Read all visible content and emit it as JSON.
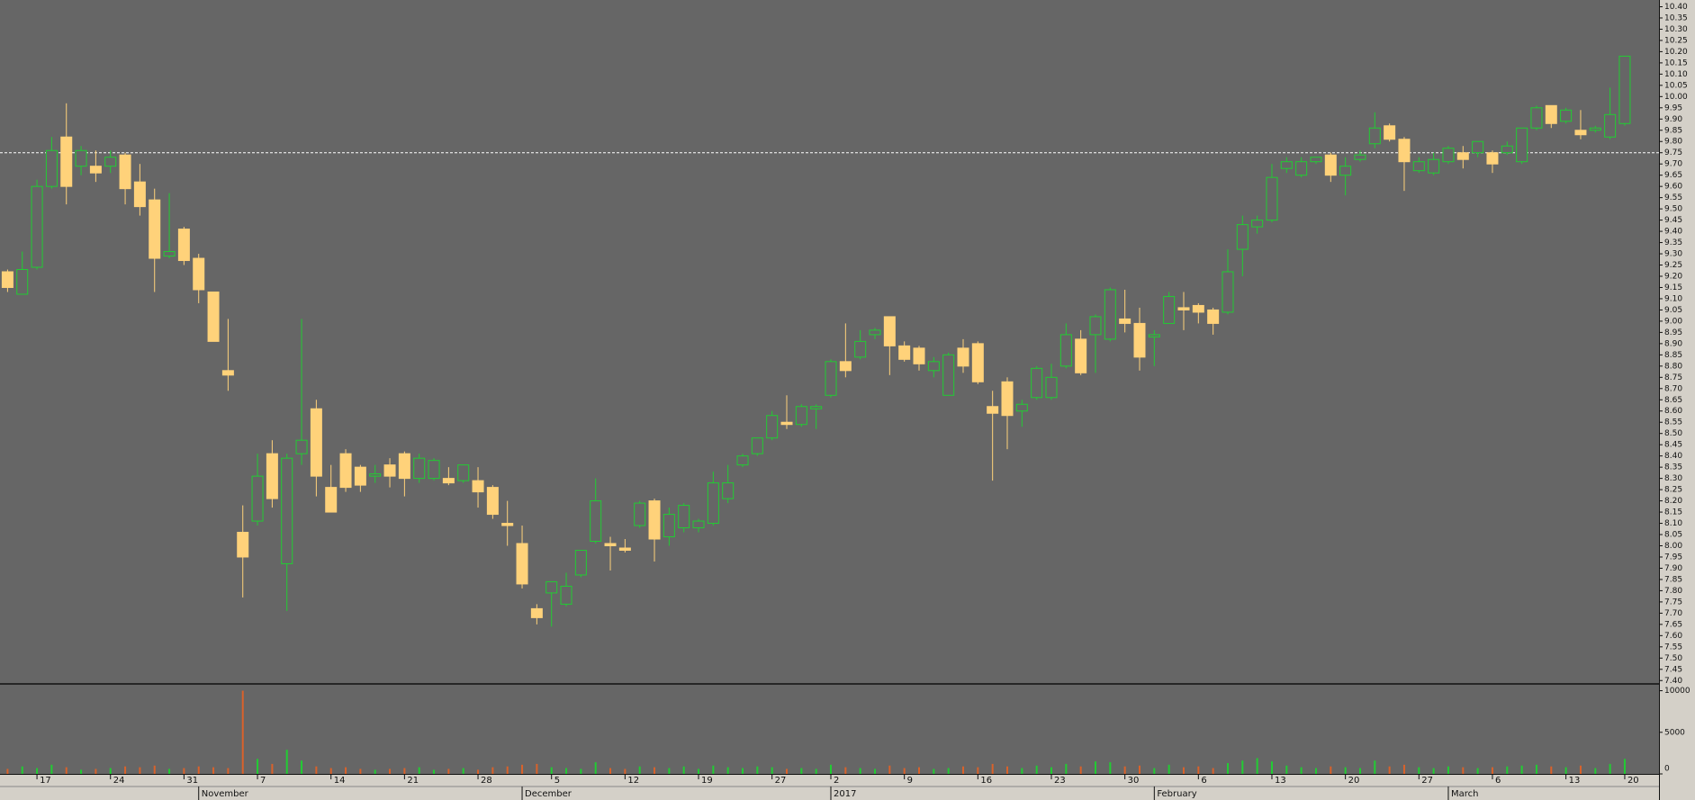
{
  "chart_data": {
    "type": "candlestick",
    "categories": [
      null,
      null,
      "17",
      null,
      null,
      null,
      null,
      "24",
      null,
      null,
      null,
      null,
      "31",
      null,
      null,
      null,
      null,
      "7",
      null,
      null,
      null,
      null,
      "14",
      null,
      null,
      null,
      null,
      "21",
      null,
      null,
      null,
      null,
      "28",
      null,
      null,
      null,
      null,
      "5",
      null,
      null,
      null,
      null,
      "12",
      null,
      null,
      null,
      null,
      "19",
      null,
      null,
      null,
      null,
      "27",
      null,
      null,
      null,
      "2",
      null,
      null,
      null,
      null,
      "9",
      null,
      null,
      null,
      null,
      "16",
      null,
      null,
      null,
      null,
      "23",
      null,
      null,
      null,
      null,
      "30",
      null,
      null,
      null,
      null,
      "6",
      null,
      null,
      null,
      null,
      "13",
      null,
      null,
      null,
      null,
      "20",
      null,
      null,
      null,
      null,
      "27",
      null,
      null,
      null,
      null,
      "6",
      null,
      null,
      null,
      null,
      "13",
      null,
      null,
      null,
      "20"
    ],
    "months": [
      null,
      null,
      null,
      null,
      null,
      null,
      null,
      null,
      null,
      null,
      null,
      null,
      null,
      "November",
      null,
      null,
      null,
      null,
      null,
      null,
      null,
      null,
      null,
      null,
      null,
      null,
      null,
      null,
      null,
      null,
      null,
      null,
      null,
      null,
      null,
      "December",
      null,
      null,
      null,
      null,
      null,
      null,
      null,
      null,
      null,
      null,
      null,
      null,
      null,
      null,
      null,
      null,
      null,
      null,
      null,
      null,
      "2017",
      null,
      null,
      null,
      null,
      null,
      null,
      null,
      null,
      null,
      null,
      null,
      null,
      null,
      null,
      null,
      null,
      null,
      null,
      null,
      null,
      null,
      "February",
      null,
      null,
      null,
      null,
      null,
      null,
      null,
      null,
      null,
      null,
      null,
      null,
      null,
      null,
      null,
      null,
      null,
      null,
      null,
      "March",
      null,
      null,
      null,
      null,
      null,
      null,
      null,
      null,
      null,
      null,
      null,
      null
    ],
    "open": [
      9.22,
      9.12,
      9.24,
      9.6,
      9.82,
      9.69,
      9.69,
      9.69,
      9.74,
      9.62,
      9.54,
      9.29,
      9.41,
      9.28,
      9.13,
      8.78,
      8.06,
      8.11,
      8.41,
      7.92,
      8.41,
      8.61,
      8.26,
      8.41,
      8.35,
      8.31,
      8.36,
      8.41,
      8.3,
      8.3,
      8.3,
      8.29,
      8.29,
      8.26,
      8.1,
      8.01,
      7.72,
      7.79,
      7.74,
      7.87,
      8.02,
      8.01,
      7.99,
      8.09,
      8.2,
      8.04,
      8.08,
      8.08,
      8.1,
      8.21,
      8.36,
      8.41,
      8.48,
      8.55,
      8.54,
      8.61,
      8.67,
      8.82,
      8.84,
      8.94,
      9.02,
      8.89,
      8.88,
      8.78,
      8.67,
      8.88,
      8.9,
      8.62,
      8.73,
      8.6,
      8.66,
      8.66,
      8.8,
      8.92,
      8.94,
      8.92,
      9.01,
      8.99,
      8.93,
      8.99,
      9.06,
      9.07,
      9.05,
      9.04,
      9.32,
      9.42,
      9.45,
      9.68,
      9.65,
      9.71,
      9.74,
      9.65,
      9.72,
      9.79,
      9.87,
      9.81,
      9.67,
      9.66,
      9.71,
      9.75,
      9.75,
      9.75,
      9.75,
      9.71,
      9.86,
      9.96,
      9.89,
      9.85,
      9.85,
      9.82,
      9.88
    ],
    "high": [
      9.23,
      9.31,
      9.63,
      9.82,
      9.97,
      9.78,
      9.76,
      9.76,
      9.75,
      9.7,
      9.59,
      9.57,
      9.42,
      9.3,
      9.13,
      9.01,
      8.18,
      8.41,
      8.47,
      8.41,
      9.01,
      8.65,
      8.36,
      8.43,
      8.36,
      8.36,
      8.39,
      8.42,
      8.41,
      8.39,
      8.35,
      8.36,
      8.35,
      8.27,
      8.2,
      8.09,
      7.74,
      7.84,
      7.88,
      7.98,
      8.3,
      8.04,
      8.03,
      8.2,
      8.21,
      8.17,
      8.19,
      8.12,
      8.33,
      8.36,
      8.41,
      8.48,
      8.6,
      8.67,
      8.63,
      8.63,
      8.83,
      8.99,
      8.96,
      8.97,
      9.02,
      8.91,
      8.89,
      8.84,
      8.86,
      8.92,
      8.91,
      8.69,
      8.75,
      8.65,
      8.8,
      8.81,
      8.99,
      8.96,
      9.03,
      9.15,
      9.14,
      9.06,
      8.96,
      9.13,
      9.13,
      9.08,
      9.06,
      9.32,
      9.47,
      9.47,
      9.7,
      9.73,
      9.73,
      9.73,
      9.75,
      9.73,
      9.76,
      9.93,
      9.88,
      9.82,
      9.73,
      9.75,
      9.78,
      9.78,
      9.8,
      9.76,
      9.8,
      9.86,
      9.96,
      9.96,
      9.95,
      9.94,
      9.87,
      10.04,
      10.18
    ],
    "low": [
      9.13,
      9.12,
      9.23,
      9.59,
      9.52,
      9.65,
      9.62,
      9.66,
      9.52,
      9.47,
      9.13,
      9.28,
      9.25,
      9.08,
      8.91,
      8.69,
      7.77,
      8.09,
      8.17,
      7.71,
      8.36,
      8.22,
      8.15,
      8.24,
      8.24,
      8.28,
      8.26,
      8.22,
      8.28,
      8.29,
      8.27,
      8.28,
      8.17,
      8.12,
      8.0,
      7.81,
      7.65,
      7.64,
      7.73,
      7.86,
      8.01,
      7.89,
      7.97,
      8.08,
      7.93,
      8.0,
      8.06,
      8.06,
      8.09,
      8.19,
      8.35,
      8.4,
      8.47,
      8.52,
      8.53,
      8.52,
      8.66,
      8.75,
      8.83,
      8.92,
      8.76,
      8.82,
      8.78,
      8.75,
      8.67,
      8.77,
      8.72,
      8.29,
      8.43,
      8.53,
      8.65,
      8.65,
      8.79,
      8.76,
      8.77,
      8.91,
      8.95,
      8.78,
      8.8,
      8.99,
      8.96,
      8.99,
      8.94,
      9.03,
      9.2,
      9.39,
      9.44,
      9.66,
      9.64,
      9.7,
      9.62,
      9.56,
      9.71,
      9.77,
      9.8,
      9.58,
      9.66,
      9.65,
      9.7,
      9.68,
      9.73,
      9.66,
      9.74,
      9.7,
      9.85,
      9.86,
      9.88,
      9.81,
      9.84,
      9.81,
      9.87
    ],
    "close": [
      9.15,
      9.23,
      9.6,
      9.76,
      9.6,
      9.76,
      9.66,
      9.73,
      9.59,
      9.51,
      9.28,
      9.31,
      9.27,
      9.14,
      8.91,
      8.76,
      7.95,
      8.31,
      8.21,
      8.39,
      8.47,
      8.31,
      8.15,
      8.26,
      8.27,
      8.32,
      8.31,
      8.3,
      8.39,
      8.38,
      8.28,
      8.36,
      8.24,
      8.14,
      8.09,
      7.83,
      7.68,
      7.84,
      7.82,
      7.98,
      8.2,
      8.0,
      7.98,
      8.19,
      8.03,
      8.14,
      8.18,
      8.11,
      8.28,
      8.28,
      8.4,
      8.48,
      8.58,
      8.54,
      8.62,
      8.62,
      8.82,
      8.78,
      8.91,
      8.96,
      8.89,
      8.83,
      8.81,
      8.82,
      8.85,
      8.8,
      8.73,
      8.59,
      8.58,
      8.63,
      8.79,
      8.75,
      8.94,
      8.77,
      9.02,
      9.14,
      8.99,
      8.84,
      8.94,
      9.11,
      9.05,
      9.04,
      8.99,
      9.22,
      9.43,
      9.45,
      9.64,
      9.71,
      9.71,
      9.73,
      9.65,
      9.69,
      9.74,
      9.86,
      9.81,
      9.71,
      9.71,
      9.72,
      9.77,
      9.72,
      9.8,
      9.7,
      9.78,
      9.86,
      9.95,
      9.88,
      9.94,
      9.83,
      9.86,
      9.92,
      10.18
    ],
    "volume": [
      600,
      900,
      700,
      1100,
      800,
      500,
      600,
      700,
      900,
      800,
      1000,
      600,
      700,
      900,
      800,
      700,
      10000,
      1800,
      1200,
      2900,
      1600,
      900,
      700,
      800,
      600,
      500,
      600,
      700,
      800,
      500,
      600,
      700,
      500,
      800,
      900,
      1100,
      1200,
      800,
      700,
      600,
      1400,
      700,
      600,
      900,
      800,
      700,
      900,
      600,
      1000,
      800,
      700,
      900,
      800,
      600,
      700,
      600,
      1100,
      800,
      700,
      600,
      1000,
      700,
      800,
      600,
      700,
      900,
      800,
      1200,
      900,
      700,
      1000,
      800,
      1200,
      900,
      1500,
      1400,
      900,
      1000,
      700,
      1100,
      800,
      900,
      700,
      1300,
      1600,
      1900,
      1500,
      1000,
      800,
      700,
      900,
      800,
      700,
      1600,
      900,
      1100,
      800,
      700,
      900,
      800,
      700,
      800,
      900,
      1000,
      1100,
      900,
      800,
      1000,
      700,
      1200,
      1800
    ],
    "ylim": [
      7.385,
      10.43
    ],
    "yticks": [
      {
        "value": 7.4,
        "label": "7.40"
      },
      7.45,
      {
        "value": 7.5,
        "label": "7.50"
      },
      7.55,
      {
        "value": 7.6,
        "label": "7.60"
      },
      7.65,
      {
        "value": 7.7,
        "label": "7.70"
      },
      7.75,
      {
        "value": 7.8,
        "label": "7.80"
      },
      7.85,
      {
        "value": 7.9,
        "label": "7.90"
      },
      7.95,
      {
        "value": 8,
        "label": "8.00"
      },
      8.05,
      {
        "value": 8.1,
        "label": "8.10"
      },
      8.15,
      {
        "value": 8.2,
        "label": "8.20"
      },
      8.25,
      {
        "value": 8.3,
        "label": "8.30"
      },
      8.35,
      {
        "value": 8.4,
        "label": "8.40"
      },
      8.45,
      {
        "value": 8.5,
        "label": "8.50"
      },
      8.55,
      {
        "value": 8.6,
        "label": "8.60"
      },
      8.65,
      {
        "value": 8.7,
        "label": "8.70"
      },
      8.75,
      {
        "value": 8.8,
        "label": "8.80"
      },
      8.85,
      {
        "value": 8.9,
        "label": "8.90"
      },
      8.95,
      {
        "value": 9,
        "label": "9.00"
      },
      9.05,
      {
        "value": 9.1,
        "label": "9.10"
      },
      9.15,
      {
        "value": 9.2,
        "label": "9.20"
      },
      9.25,
      {
        "value": 9.3,
        "label": "9.30"
      },
      9.35,
      {
        "value": 9.4,
        "label": "9.40"
      },
      9.45,
      {
        "value": 9.5,
        "label": "9.50"
      },
      9.55,
      {
        "value": 9.6,
        "label": "9.60"
      },
      9.65,
      {
        "value": 9.7,
        "label": "9.70"
      },
      9.75,
      {
        "value": 9.8,
        "label": "9.80"
      },
      9.85,
      {
        "value": 9.9,
        "label": "9.90"
      },
      9.95,
      {
        "value": 10,
        "label": "10.00"
      },
      10.05,
      {
        "value": 10.1,
        "label": "10.10"
      },
      10.15,
      {
        "value": 10.2,
        "label": "10.20"
      },
      10.25,
      {
        "value": 10.3,
        "label": "10.30"
      },
      10.35,
      {
        "value": 10.4,
        "label": "10.40"
      }
    ],
    "reference_line": 9.75,
    "volume_ylim": [
      0,
      10600
    ],
    "volume_yticks": [
      0,
      5000,
      10000
    ],
    "up_color": "#22cc33",
    "down_color": "#ffd27a",
    "volume_down_color": "#d9622b"
  }
}
